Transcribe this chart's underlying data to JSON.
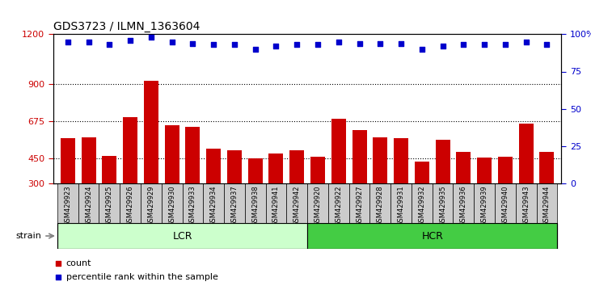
{
  "title": "GDS3723 / ILMN_1363604",
  "samples": [
    "GSM429923",
    "GSM429924",
    "GSM429925",
    "GSM429926",
    "GSM429929",
    "GSM429930",
    "GSM429933",
    "GSM429934",
    "GSM429937",
    "GSM429938",
    "GSM429941",
    "GSM429942",
    "GSM429920",
    "GSM429922",
    "GSM429927",
    "GSM429928",
    "GSM429931",
    "GSM429932",
    "GSM429935",
    "GSM429936",
    "GSM429939",
    "GSM429940",
    "GSM429943",
    "GSM429944"
  ],
  "counts": [
    570,
    575,
    465,
    700,
    920,
    650,
    640,
    510,
    500,
    450,
    480,
    500,
    460,
    690,
    620,
    575,
    570,
    430,
    560,
    490,
    455,
    460,
    660,
    490
  ],
  "percentile_ranks": [
    95,
    95,
    93,
    96,
    98,
    95,
    94,
    93,
    93,
    90,
    92,
    93,
    93,
    95,
    94,
    94,
    94,
    90,
    92,
    93,
    93,
    93,
    95,
    93
  ],
  "lcr_count": 12,
  "hcr_count": 12,
  "bar_color": "#cc0000",
  "dot_color": "#0000cc",
  "lcr_color": "#ccffcc",
  "hcr_color": "#44cc44",
  "bg_color": "#ffffff",
  "tick_bg_color": "#cccccc",
  "ylim_left": [
    300,
    1200
  ],
  "ylim_right": [
    0,
    100
  ],
  "yticks_left": [
    300,
    450,
    675,
    900,
    1200
  ],
  "yticks_right": [
    0,
    25,
    50,
    75,
    100
  ],
  "ylabel_left_color": "#cc0000",
  "ylabel_right_color": "#0000cc",
  "title_fontsize": 10,
  "bar_width": 0.7,
  "hgrid_values": [
    450,
    675,
    900
  ],
  "lcr_label": "LCR",
  "hcr_label": "HCR",
  "strain_label": "strain",
  "legend_count": "count",
  "legend_pct": "percentile rank within the sample"
}
